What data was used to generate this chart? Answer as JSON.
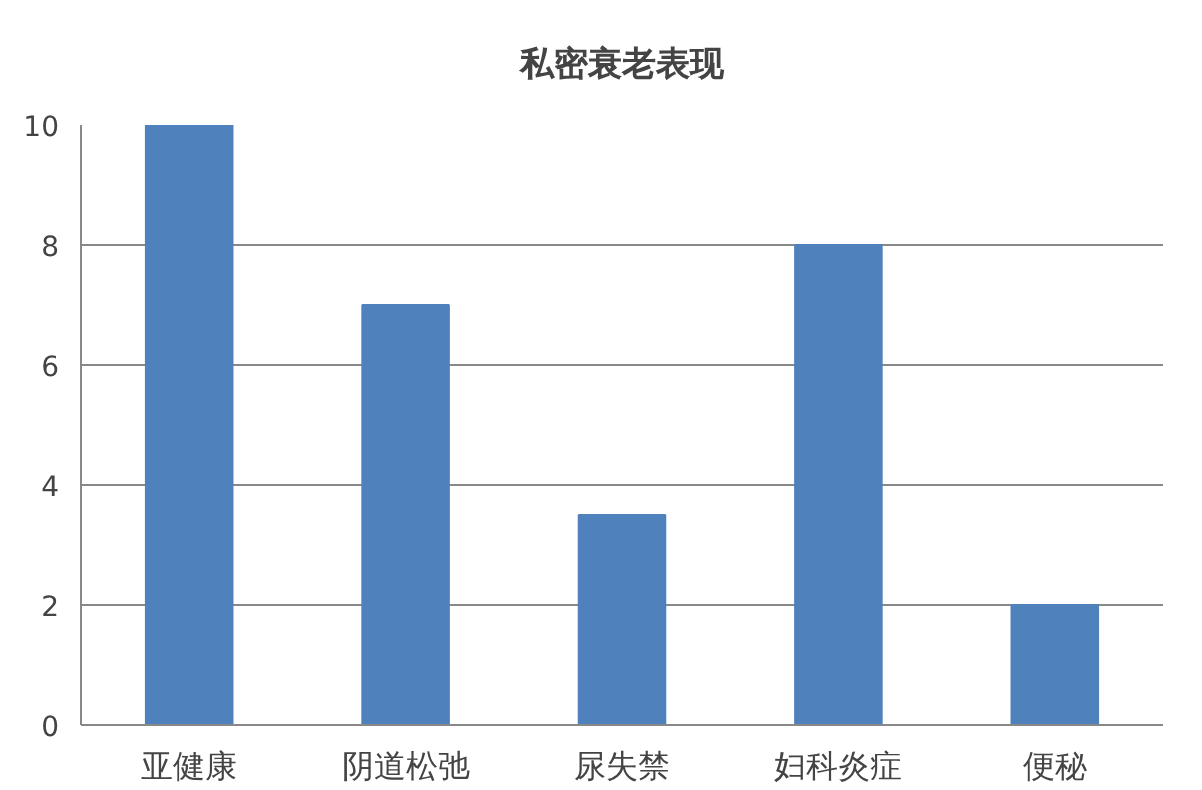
{
  "chart_data": {
    "type": "bar",
    "title": "私密衰老表现",
    "categories": [
      "亚健康",
      "阴道松弛",
      "尿失禁",
      "妇科炎症",
      "便秘"
    ],
    "values": [
      10,
      7,
      3.5,
      8,
      2
    ],
    "color": "#4f81bd",
    "ylim": [
      0,
      10
    ],
    "yticks": [
      0,
      2,
      4,
      6,
      8,
      10
    ],
    "grid": "y"
  }
}
